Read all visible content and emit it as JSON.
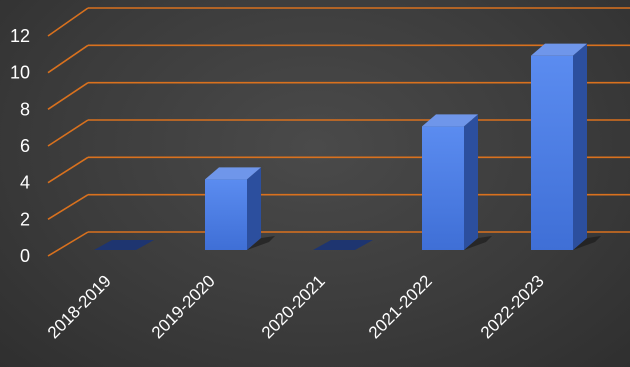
{
  "chart_data": {
    "type": "bar",
    "style": "3d-column",
    "categories": [
      "2018-2019",
      "2019-2020",
      "2020-2021",
      "2021-2022",
      "2022-2023"
    ],
    "values": [
      0,
      4,
      0,
      7,
      11
    ],
    "yticks": [
      0,
      2,
      4,
      6,
      8,
      10,
      12
    ],
    "ylim": [
      0,
      12
    ],
    "grid": true,
    "legend": "none",
    "colors": {
      "bar_front": "#4f80e6",
      "bar_side": "#2c4f9e",
      "bar_top": "#6f96ea",
      "gridline": "#d9711e",
      "text": "#ffffff"
    }
  }
}
